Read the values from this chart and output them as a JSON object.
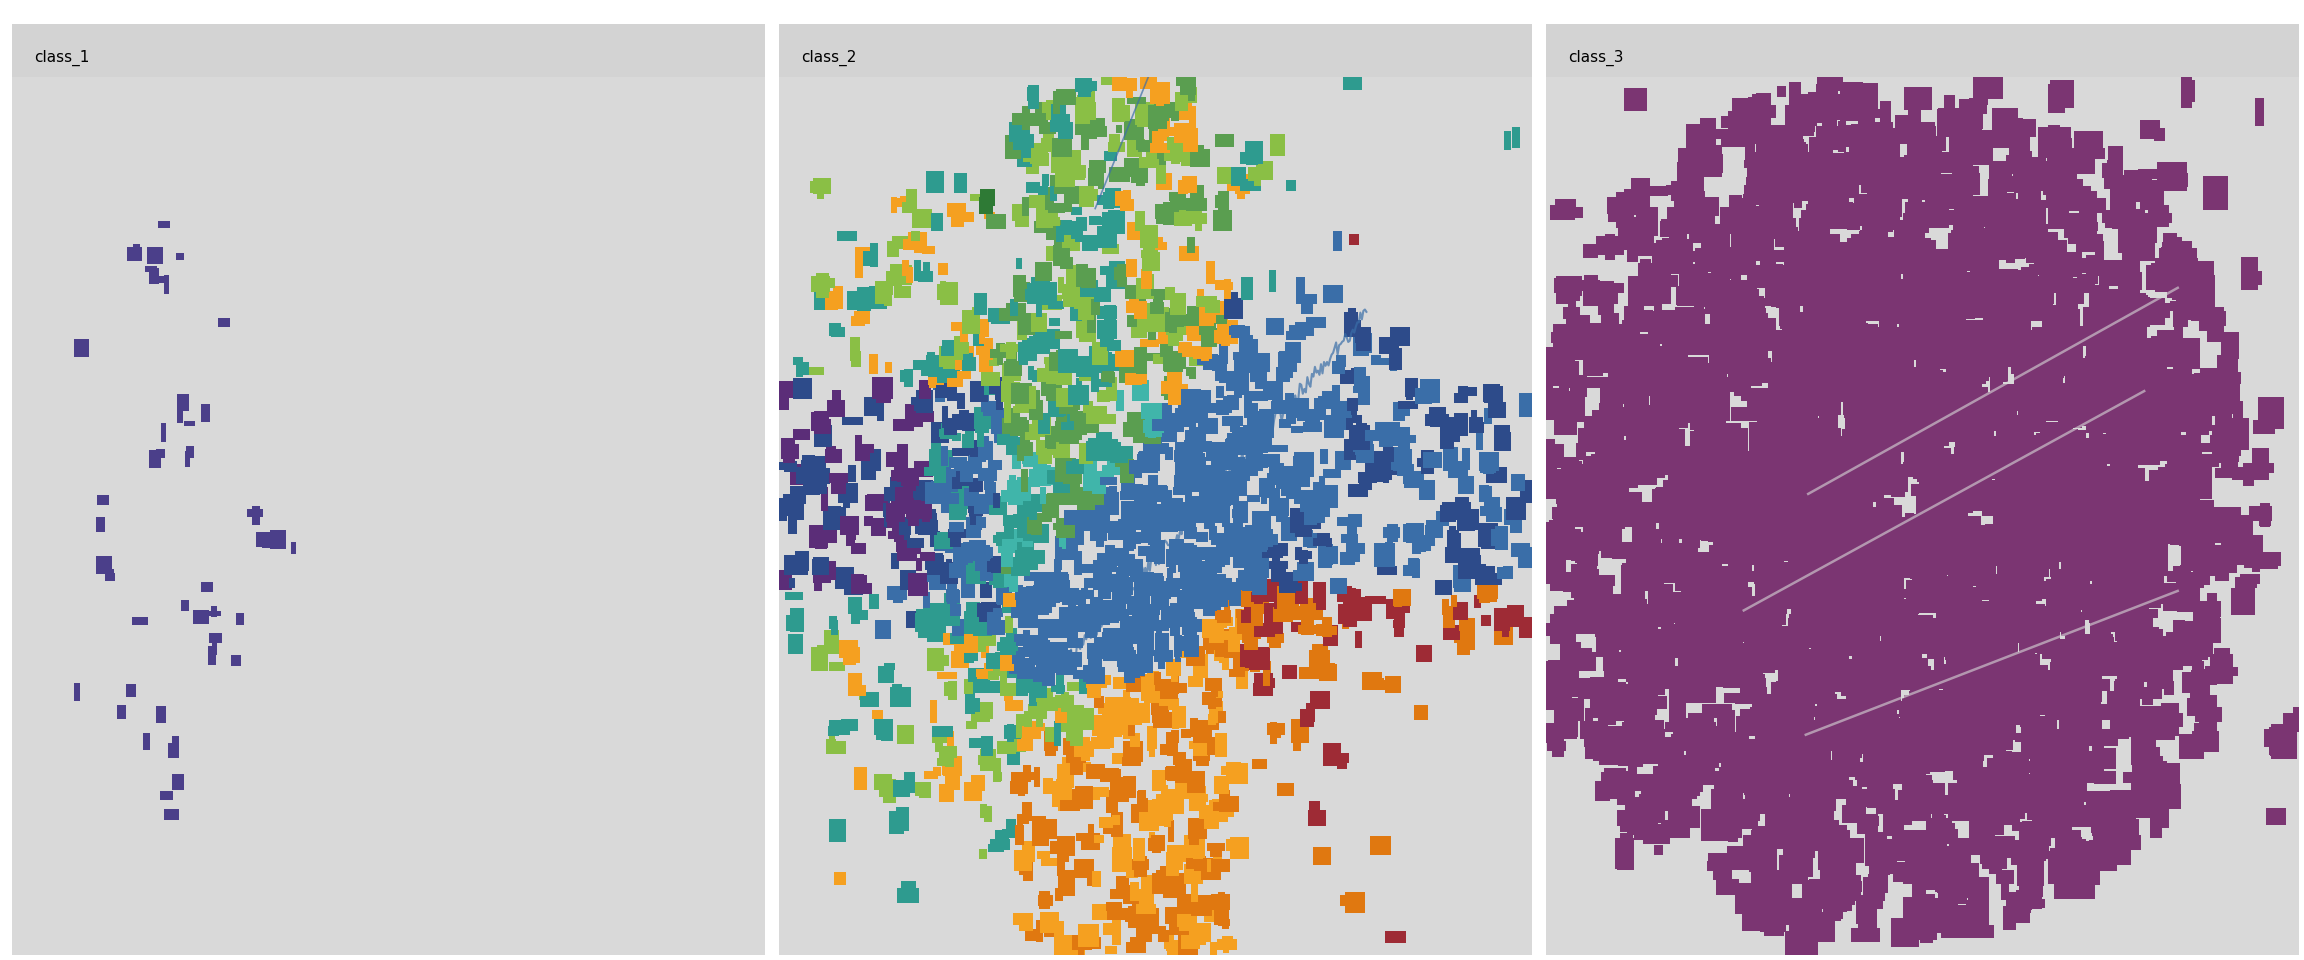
{
  "figure_width": 23.04,
  "figure_height": 9.6,
  "dpi": 100,
  "figure_bg": "#ffffff",
  "panel_bg": "#d9d9d9",
  "header_bg": "#d3d3d3",
  "panels": [
    "class_1",
    "class_2",
    "class_3"
  ],
  "title_fontsize": 11,
  "seed": 42,
  "class1_color": "#4B3F8A",
  "class3_color": "#7B3572",
  "class2_colors": {
    "blue_dark": "#2D4B8A",
    "blue_med": "#3A6EA8",
    "teal": "#2E9B8F",
    "teal_light": "#40B5AA",
    "green_lime": "#8ABF45",
    "green_med": "#5A9E50",
    "green_dark": "#2E7A35",
    "orange": "#F5A020",
    "orange_dark": "#E07810",
    "red_dark": "#9E2B35",
    "purple_dark": "#5B2D78",
    "purple_med": "#7B4598"
  }
}
